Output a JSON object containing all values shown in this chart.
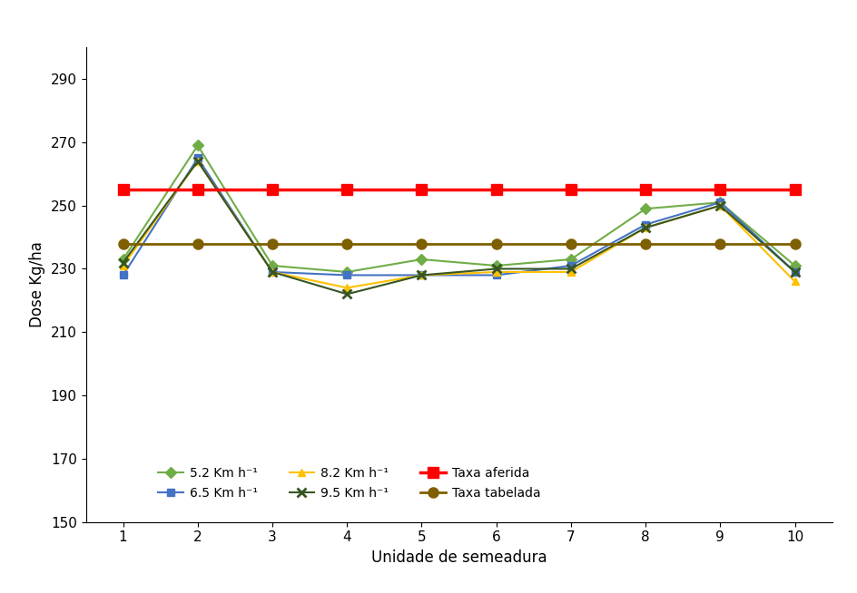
{
  "x": [
    1,
    2,
    3,
    4,
    5,
    6,
    7,
    8,
    9,
    10
  ],
  "series_5_2": [
    233,
    269,
    231,
    229,
    233,
    231,
    233,
    249,
    251,
    231
  ],
  "series_6_5": [
    228,
    265,
    229,
    228,
    228,
    228,
    231,
    244,
    251,
    229
  ],
  "series_8_2": [
    231,
    264,
    229,
    224,
    228,
    229,
    229,
    243,
    250,
    226
  ],
  "series_9_5": [
    232,
    264,
    229,
    222,
    228,
    230,
    230,
    243,
    250,
    229
  ],
  "taxa_aferida": [
    255,
    255,
    255,
    255,
    255,
    255,
    255,
    255,
    255,
    255
  ],
  "taxa_tabelada": [
    238,
    238,
    238,
    238,
    238,
    238,
    238,
    238,
    238,
    238
  ],
  "color_5_2": "#70ad47",
  "color_6_5": "#4472c4",
  "color_8_2": "#ffc000",
  "color_9_5": "#375623",
  "color_taxa_aferida": "#ff0000",
  "color_taxa_tabelada": "#7f6000",
  "ylabel": "Dose Kg/ha",
  "xlabel": "Unidade de semeadura",
  "ylim": [
    150,
    300
  ],
  "yticks": [
    150,
    170,
    190,
    210,
    230,
    250,
    270,
    290
  ],
  "legend_5_2": "5.2 Km h⁻¹",
  "legend_6_5": "6.5 Km h⁻¹",
  "legend_8_2": "8.2 Km h⁻¹",
  "legend_9_5": "9.5 Km h⁻¹",
  "legend_taxa_aferida": "Taxa aferida",
  "legend_taxa_tabelada": "Taxa tabelada"
}
